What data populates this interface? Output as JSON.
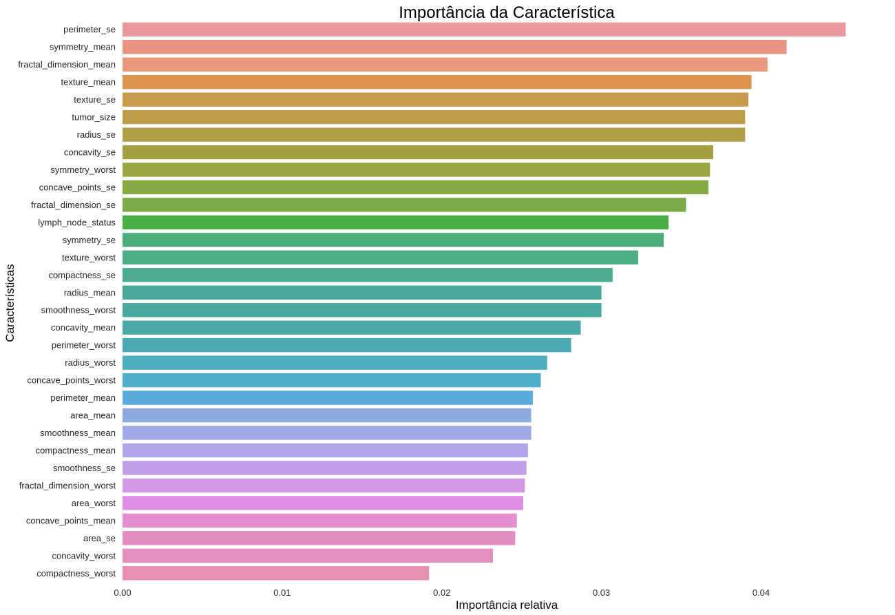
{
  "chart_data": {
    "type": "bar",
    "orientation": "horizontal",
    "title": "Importância da Característica",
    "xlabel": "Importância relativa",
    "ylabel": "Características",
    "xlim": [
      0,
      0.0458
    ],
    "xticks": [
      "0.00",
      "0.01",
      "0.02",
      "0.03",
      "0.04"
    ],
    "xtick_values": [
      0,
      0.01,
      0.02,
      0.03,
      0.04
    ],
    "grid": false,
    "categories": [
      "perimeter_se",
      "symmetry_mean",
      "fractal_dimension_mean",
      "texture_mean",
      "texture_se",
      "tumor_size",
      "radius_se",
      "concavity_se",
      "symmetry_worst",
      "concave_points_se",
      "fractal_dimension_se",
      "lymph_node_status",
      "symmetry_se",
      "texture_worst",
      "compactness_se",
      "radius_mean",
      "smoothness_worst",
      "concavity_mean",
      "perimeter_worst",
      "radius_worst",
      "concave_points_worst",
      "perimeter_mean",
      "area_mean",
      "smoothness_mean",
      "compactness_mean",
      "smoothness_se",
      "fractal_dimension_worst",
      "area_worst",
      "concave_points_mean",
      "area_se",
      "concavity_worst",
      "compactness_worst"
    ],
    "values": [
      0.0453,
      0.0416,
      0.0404,
      0.0394,
      0.0392,
      0.039,
      0.039,
      0.037,
      0.0368,
      0.0367,
      0.0353,
      0.0342,
      0.0339,
      0.0323,
      0.0307,
      0.03,
      0.03,
      0.0287,
      0.0281,
      0.0266,
      0.0262,
      0.0257,
      0.0256,
      0.0256,
      0.0254,
      0.0253,
      0.0252,
      0.0251,
      0.0247,
      0.0246,
      0.0232,
      0.0192
    ],
    "colors": [
      "#ea979d",
      "#ea9383",
      "#e8987b",
      "#dc944f",
      "#ca9a4c",
      "#bd9d49",
      "#b09f45",
      "#a49f42",
      "#9ba645",
      "#86a944",
      "#7aab48",
      "#4baf48",
      "#4bae7a",
      "#4bae84",
      "#4bac90",
      "#49a89a",
      "#49a89d",
      "#4aa8a8",
      "#4aaab4",
      "#4daebd",
      "#50aecb",
      "#5aaadc",
      "#8aaae0",
      "#a0a9e6",
      "#b3a5ea",
      "#c29ee8",
      "#d198e6",
      "#df8fe3",
      "#e68dd0",
      "#e38dc2",
      "#e58fbe",
      "#e790b3"
    ]
  }
}
